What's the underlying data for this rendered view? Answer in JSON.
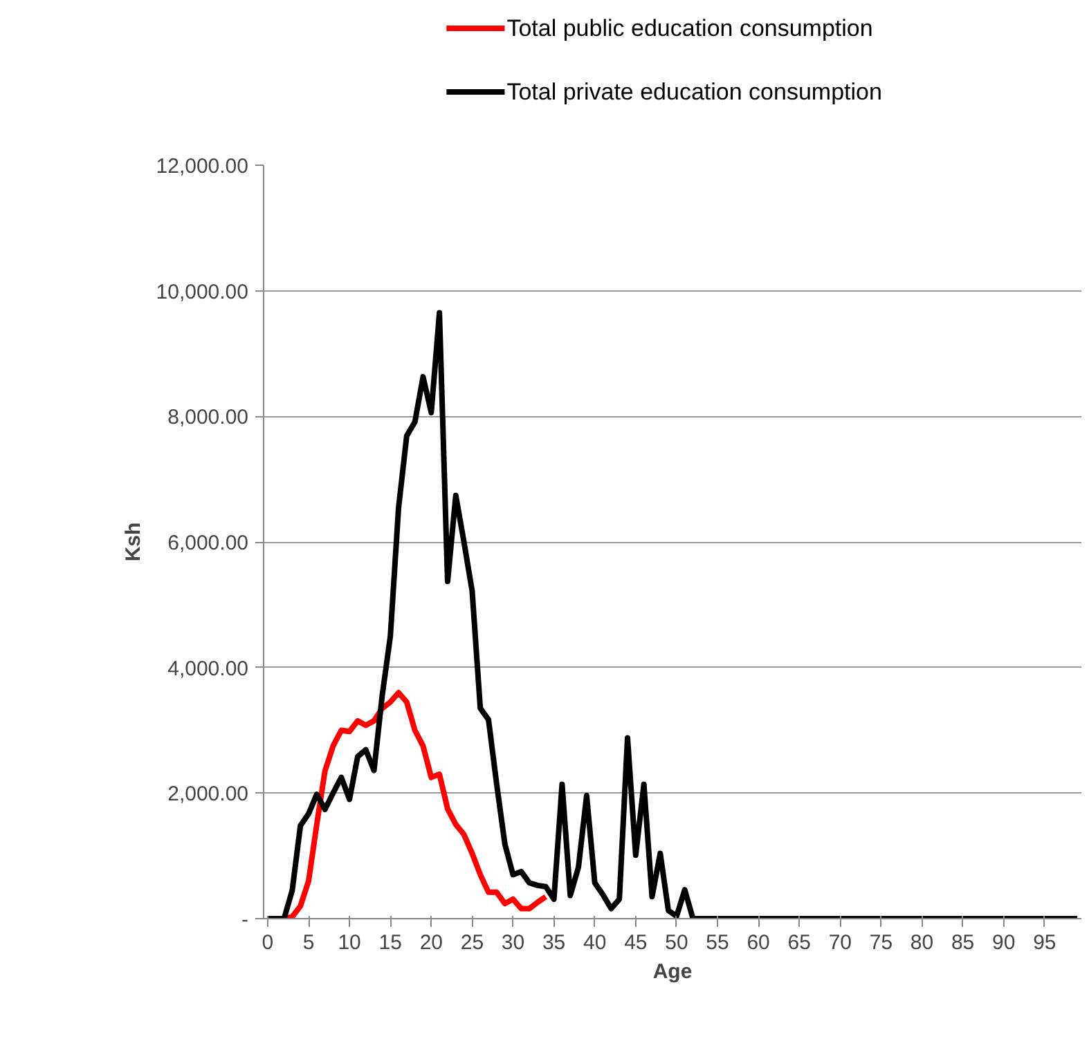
{
  "chart_data": {
    "type": "line",
    "xlabel": "Age",
    "ylabel": "Ksh",
    "x": [
      0,
      1,
      2,
      3,
      4,
      5,
      6,
      7,
      8,
      9,
      10,
      11,
      12,
      13,
      14,
      15,
      16,
      17,
      18,
      19,
      20,
      21,
      22,
      23,
      24,
      25,
      26,
      27,
      28,
      29,
      30,
      31,
      32,
      33,
      34,
      35,
      36,
      37,
      38,
      39,
      40,
      41,
      42,
      43,
      44,
      45,
      46,
      47,
      48,
      49,
      50,
      51,
      52,
      53,
      54,
      55,
      56,
      57,
      58,
      59,
      60,
      61,
      62,
      63,
      64,
      65,
      66,
      67,
      68,
      69,
      70,
      71,
      72,
      73,
      74,
      75,
      76,
      77,
      78,
      79,
      80,
      81,
      82,
      83,
      84,
      85,
      86,
      87,
      88,
      89,
      90,
      91,
      92,
      93,
      94,
      95,
      96,
      97,
      98,
      99
    ],
    "series": [
      {
        "name": "Total public education consumption",
        "color": "#ff0000",
        "values": [
          0,
          0,
          0,
          30,
          200,
          600,
          1500,
          2350,
          2750,
          3000,
          2980,
          3150,
          3080,
          3150,
          3350,
          3450,
          3600,
          3450,
          3000,
          2750,
          2250,
          2300,
          1750,
          1500,
          1340,
          1040,
          700,
          420,
          420,
          240,
          310,
          160,
          160,
          260,
          350,
          null,
          null,
          null,
          null,
          null,
          null,
          null,
          null,
          null,
          null,
          null,
          null,
          null,
          null,
          null,
          null,
          null,
          null,
          null,
          null,
          null,
          null,
          null,
          null,
          null,
          null,
          null,
          null,
          null,
          null,
          null,
          null,
          null,
          null,
          null,
          null,
          null,
          null,
          null,
          null,
          null,
          null,
          null,
          null,
          null,
          null,
          null,
          null,
          null,
          null,
          null,
          null,
          null,
          null,
          null,
          null,
          null,
          null,
          null,
          null,
          null,
          null,
          null,
          null,
          null
        ]
      },
      {
        "name": "Total private education consumption",
        "color": "#000000",
        "values": [
          0,
          0,
          0,
          450,
          1480,
          1670,
          1980,
          1740,
          2000,
          2250,
          1900,
          2580,
          2690,
          2360,
          3550,
          4500,
          6540,
          7690,
          7910,
          8630,
          8060,
          9650,
          5370,
          6740,
          6000,
          5220,
          3350,
          3170,
          2140,
          1190,
          700,
          750,
          570,
          530,
          510,
          310,
          2140,
          370,
          820,
          1960,
          570,
          380,
          160,
          310,
          2880,
          1010,
          2140,
          350,
          1040,
          130,
          40,
          460,
          0,
          0,
          0,
          0,
          0,
          0,
          0,
          0,
          0,
          0,
          0,
          0,
          0,
          0,
          0,
          0,
          0,
          0,
          0,
          0,
          0,
          0,
          0,
          0,
          0,
          0,
          0,
          0,
          0,
          0,
          0,
          0,
          0,
          0,
          0,
          0,
          0,
          0,
          0,
          0,
          0,
          0,
          0,
          0,
          0,
          0,
          0,
          0
        ]
      }
    ],
    "xlim": [
      -0.5,
      99.5
    ],
    "xticks": [
      0,
      5,
      10,
      15,
      20,
      25,
      30,
      35,
      40,
      45,
      50,
      55,
      60,
      65,
      70,
      75,
      80,
      85,
      90,
      95
    ],
    "ylim": [
      0,
      12000
    ],
    "yticks": [
      {
        "value": 0,
        "label": "-"
      },
      {
        "value": 2000,
        "label": "2,000.00"
      },
      {
        "value": 4000,
        "label": "4,000.00"
      },
      {
        "value": 6000,
        "label": "6,000.00"
      },
      {
        "value": 8000,
        "label": "8,000.00"
      },
      {
        "value": 10000,
        "label": "10,000.00"
      },
      {
        "value": 12000,
        "label": "12,000.00"
      }
    ],
    "grid": "y",
    "legend": "top",
    "marker": "none",
    "line_style": "solid"
  }
}
